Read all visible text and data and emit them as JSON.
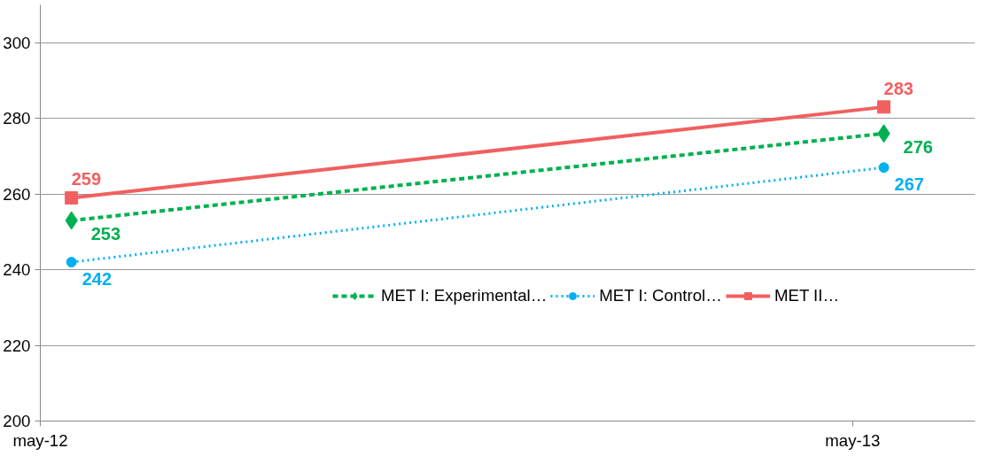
{
  "chart_data": {
    "type": "line",
    "x": [
      "2012-05-15",
      "2013-05-15"
    ],
    "xlim": [
      "2012-05-01",
      "2013-06-25"
    ],
    "xticks": [
      {
        "value": "2012-05-01",
        "label": "may-12"
      },
      {
        "value": "2013-05-01",
        "label": "may-13"
      }
    ],
    "ylim": [
      200,
      310
    ],
    "yticks": [
      200,
      220,
      240,
      260,
      280,
      300
    ],
    "grid": "y",
    "legend": "bottom right",
    "data_labels": true,
    "series": [
      {
        "name": "MET I: Experimental…",
        "color": "#00b050",
        "values": [
          253,
          276
        ],
        "marker": "diamond",
        "line_style": "dashed"
      },
      {
        "name": "MET I: Control…",
        "color": "#00b0f0",
        "values": [
          242,
          267
        ],
        "marker": "circle",
        "line_style": "dotted"
      },
      {
        "name": "MET II…",
        "color": "#f0605f",
        "values": [
          259,
          283
        ],
        "marker": "square",
        "line_style": "solid"
      }
    ]
  }
}
